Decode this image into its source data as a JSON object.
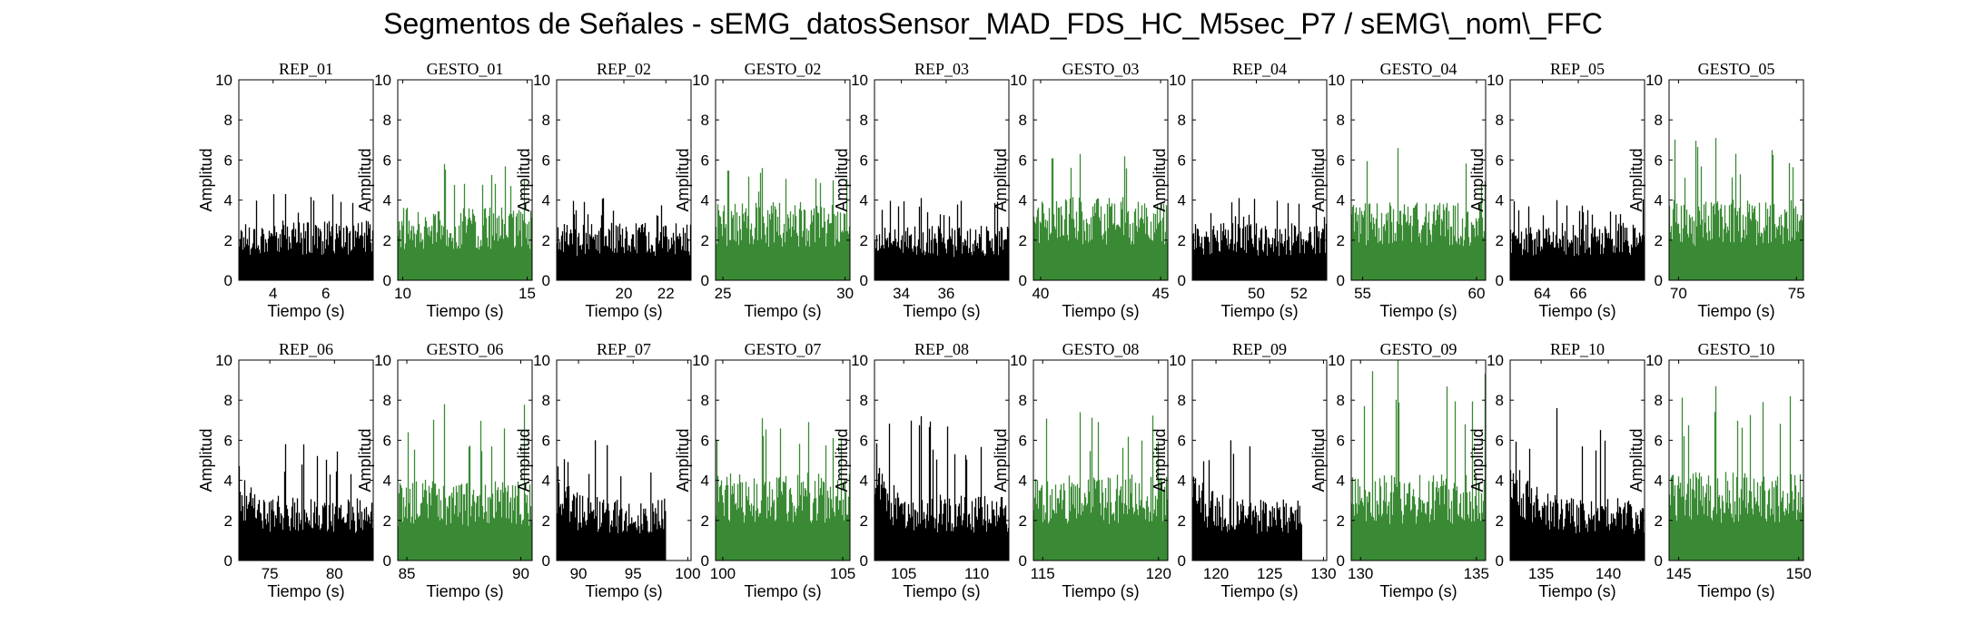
{
  "title": "Segmentos de Señales - sEMG_datosSensor_MAD_FDS_HC_M5sec_P7 / sEMG\\_nom\\_FFC",
  "colors": {
    "rep": "#000000",
    "gesto": "#3a8a35",
    "axis": "#000000",
    "background": "#ffffff"
  },
  "chart_data": [
    {
      "type": "bar",
      "title": "REP_01",
      "kind": "rep",
      "xlim": [
        2.7,
        7.8
      ],
      "xticks": [
        4,
        6
      ],
      "ylim": [
        0,
        10
      ],
      "yticks": [
        0,
        2,
        4,
        6,
        8,
        10
      ],
      "xlabel": "Tiempo (s)",
      "ylabel": "Amplitud",
      "data_start": 2.7,
      "data_end": 7.8,
      "mean_amplitude": 2.3,
      "max_amplitude": 4.3
    },
    {
      "type": "bar",
      "title": "GESTO_01",
      "kind": "gesto",
      "xlim": [
        9.8,
        15.2
      ],
      "xticks": [
        10,
        15
      ],
      "ylim": [
        0,
        10
      ],
      "yticks": [
        0,
        2,
        4,
        6,
        8,
        10
      ],
      "xlabel": "Tiempo (s)",
      "ylabel": "Amplitud",
      "data_start": 9.8,
      "data_end": 15.2,
      "mean_amplitude": 2.8,
      "max_amplitude": 5.8
    },
    {
      "type": "bar",
      "title": "REP_02",
      "kind": "rep",
      "xlim": [
        16.8,
        23.2
      ],
      "xticks": [
        20,
        22
      ],
      "ylim": [
        0,
        10
      ],
      "yticks": [
        0,
        2,
        4,
        6,
        8,
        10
      ],
      "xlabel": "Tiempo (s)",
      "ylabel": "Amplitud",
      "data_start": 16.8,
      "data_end": 23.2,
      "mean_amplitude": 2.2,
      "max_amplitude": 4.1
    },
    {
      "type": "bar",
      "title": "GESTO_02",
      "kind": "gesto",
      "xlim": [
        24.7,
        30.2
      ],
      "xticks": [
        25,
        30
      ],
      "ylim": [
        0,
        10
      ],
      "yticks": [
        0,
        2,
        4,
        6,
        8,
        10
      ],
      "xlabel": "Tiempo (s)",
      "ylabel": "Amplitud",
      "data_start": 24.7,
      "data_end": 30.2,
      "mean_amplitude": 3.0,
      "max_amplitude": 5.6
    },
    {
      "type": "bar",
      "title": "REP_03",
      "kind": "rep",
      "xlim": [
        32.8,
        38.8
      ],
      "xticks": [
        34,
        36
      ],
      "ylim": [
        0,
        10
      ],
      "yticks": [
        0,
        2,
        4,
        6,
        8,
        10
      ],
      "xlabel": "Tiempo (s)",
      "ylabel": "Amplitud",
      "data_start": 32.8,
      "data_end": 38.8,
      "mean_amplitude": 2.1,
      "max_amplitude": 4.1
    },
    {
      "type": "bar",
      "title": "GESTO_03",
      "kind": "gesto",
      "xlim": [
        39.7,
        45.3
      ],
      "xticks": [
        40,
        45
      ],
      "ylim": [
        0,
        10
      ],
      "yticks": [
        0,
        2,
        4,
        6,
        8,
        10
      ],
      "xlabel": "Tiempo (s)",
      "ylabel": "Amplitud",
      "data_start": 39.7,
      "data_end": 45.3,
      "mean_amplitude": 3.2,
      "max_amplitude": 6.3
    },
    {
      "type": "bar",
      "title": "REP_04",
      "kind": "rep",
      "xlim": [
        47.0,
        53.3
      ],
      "xticks": [
        50,
        52
      ],
      "ylim": [
        0,
        10
      ],
      "yticks": [
        0,
        2,
        4,
        6,
        8,
        10
      ],
      "xlabel": "Tiempo (s)",
      "ylabel": "Amplitud",
      "data_start": 47.0,
      "data_end": 53.3,
      "mean_amplitude": 2.2,
      "max_amplitude": 4.1
    },
    {
      "type": "bar",
      "title": "GESTO_04",
      "kind": "gesto",
      "xlim": [
        54.5,
        60.4
      ],
      "xticks": [
        55,
        60
      ],
      "ylim": [
        0,
        10
      ],
      "yticks": [
        0,
        2,
        4,
        6,
        8,
        10
      ],
      "xlabel": "Tiempo (s)",
      "ylabel": "Amplitud",
      "data_start": 54.5,
      "data_end": 60.4,
      "mean_amplitude": 3.0,
      "max_amplitude": 6.6
    },
    {
      "type": "bar",
      "title": "REP_05",
      "kind": "rep",
      "xlim": [
        62.2,
        69.7
      ],
      "xticks": [
        64,
        66
      ],
      "ylim": [
        0,
        10
      ],
      "yticks": [
        0,
        2,
        4,
        6,
        8,
        10
      ],
      "xlabel": "Tiempo (s)",
      "ylabel": "Amplitud",
      "data_start": 62.2,
      "data_end": 69.7,
      "mean_amplitude": 2.2,
      "max_amplitude": 4.0
    },
    {
      "type": "bar",
      "title": "GESTO_05",
      "kind": "gesto",
      "xlim": [
        69.6,
        75.3
      ],
      "xticks": [
        70,
        75
      ],
      "ylim": [
        0,
        10
      ],
      "yticks": [
        0,
        2,
        4,
        6,
        8,
        10
      ],
      "xlabel": "Tiempo (s)",
      "ylabel": "Amplitud",
      "data_start": 69.6,
      "data_end": 75.3,
      "mean_amplitude": 3.1,
      "max_amplitude": 7.1
    },
    {
      "type": "bar",
      "title": "REP_06",
      "kind": "rep",
      "xlim": [
        72.6,
        83.0
      ],
      "xticks": [
        75,
        80
      ],
      "ylim": [
        0,
        10
      ],
      "yticks": [
        0,
        2,
        4,
        6,
        8,
        10
      ],
      "xlabel": "Tiempo (s)",
      "ylabel": "Amplitud",
      "data_start": 72.6,
      "data_end": 83.0,
      "mean_amplitude": 2.4,
      "max_amplitude": 5.8
    },
    {
      "type": "bar",
      "title": "GESTO_06",
      "kind": "gesto",
      "xlim": [
        84.6,
        90.5
      ],
      "xticks": [
        85,
        90
      ],
      "ylim": [
        0,
        10
      ],
      "yticks": [
        0,
        2,
        4,
        6,
        8,
        10
      ],
      "xlabel": "Tiempo (s)",
      "ylabel": "Amplitud",
      "data_start": 84.6,
      "data_end": 90.5,
      "mean_amplitude": 3.1,
      "max_amplitude": 7.8
    },
    {
      "type": "bar",
      "title": "REP_07",
      "kind": "rep",
      "xlim": [
        88.0,
        100.3
      ],
      "xticks": [
        90,
        95,
        100
      ],
      "ylim": [
        0,
        10
      ],
      "yticks": [
        0,
        2,
        4,
        6,
        8,
        10
      ],
      "xlabel": "Tiempo (s)",
      "ylabel": "Amplitud",
      "data_start": 88.0,
      "data_end": 98.0,
      "mean_amplitude": 2.4,
      "max_amplitude": 6.0
    },
    {
      "type": "bar",
      "title": "GESTO_07",
      "kind": "gesto",
      "xlim": [
        99.7,
        105.3
      ],
      "xticks": [
        100,
        105
      ],
      "ylim": [
        0,
        10
      ],
      "yticks": [
        0,
        2,
        4,
        6,
        8,
        10
      ],
      "xlabel": "Tiempo (s)",
      "ylabel": "Amplitud",
      "data_start": 99.7,
      "data_end": 105.3,
      "mean_amplitude": 3.4,
      "max_amplitude": 7.1
    },
    {
      "type": "bar",
      "title": "REP_08",
      "kind": "rep",
      "xlim": [
        103.0,
        112.2
      ],
      "xticks": [
        105,
        110
      ],
      "ylim": [
        0,
        10
      ],
      "yticks": [
        0,
        2,
        4,
        6,
        8,
        10
      ],
      "xlabel": "Tiempo (s)",
      "ylabel": "Amplitud",
      "data_start": 103.0,
      "data_end": 112.2,
      "mean_amplitude": 2.5,
      "max_amplitude": 7.2
    },
    {
      "type": "bar",
      "title": "GESTO_08",
      "kind": "gesto",
      "xlim": [
        114.6,
        120.4
      ],
      "xticks": [
        115,
        120
      ],
      "ylim": [
        0,
        10
      ],
      "yticks": [
        0,
        2,
        4,
        6,
        8,
        10
      ],
      "xlabel": "Tiempo (s)",
      "ylabel": "Amplitud",
      "data_start": 114.6,
      "data_end": 120.4,
      "mean_amplitude": 3.3,
      "max_amplitude": 7.4
    },
    {
      "type": "bar",
      "title": "REP_09",
      "kind": "rep",
      "xlim": [
        117.8,
        130.3
      ],
      "xticks": [
        120,
        125,
        130
      ],
      "ylim": [
        0,
        10
      ],
      "yticks": [
        0,
        2,
        4,
        6,
        8,
        10
      ],
      "xlabel": "Tiempo (s)",
      "ylabel": "Amplitud",
      "data_start": 117.8,
      "data_end": 128.0,
      "mean_amplitude": 2.4,
      "max_amplitude": 6.0
    },
    {
      "type": "bar",
      "title": "GESTO_09",
      "kind": "gesto",
      "xlim": [
        129.6,
        135.4
      ],
      "xticks": [
        130,
        135
      ],
      "ylim": [
        0,
        10
      ],
      "yticks": [
        0,
        2,
        4,
        6,
        8,
        10
      ],
      "xlabel": "Tiempo (s)",
      "ylabel": "Amplitud",
      "data_start": 129.6,
      "data_end": 135.4,
      "mean_amplitude": 3.3,
      "max_amplitude": 10.0
    },
    {
      "type": "bar",
      "title": "REP_10",
      "kind": "rep",
      "xlim": [
        132.7,
        142.7
      ],
      "xticks": [
        135,
        140
      ],
      "ylim": [
        0,
        10
      ],
      "yticks": [
        0,
        2,
        4,
        6,
        8,
        10
      ],
      "xlabel": "Tiempo (s)",
      "ylabel": "Amplitud",
      "data_start": 132.7,
      "data_end": 142.7,
      "mean_amplitude": 2.4,
      "max_amplitude": 7.6
    },
    {
      "type": "bar",
      "title": "GESTO_10",
      "kind": "gesto",
      "xlim": [
        144.6,
        150.2
      ],
      "xticks": [
        145,
        150
      ],
      "ylim": [
        0,
        10
      ],
      "yticks": [
        0,
        2,
        4,
        6,
        8,
        10
      ],
      "xlabel": "Tiempo (s)",
      "ylabel": "Amplitud",
      "data_start": 144.6,
      "data_end": 150.2,
      "mean_amplitude": 3.4,
      "max_amplitude": 8.7
    }
  ]
}
